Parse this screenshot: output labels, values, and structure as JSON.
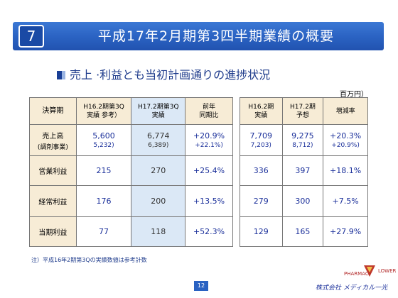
{
  "header": {
    "section_number": "7",
    "title": "平成17年2月期第3四半期業績の概要"
  },
  "subheading": "売上 ·利益とも当初計画通りの進捗状況",
  "unit": "百万円）",
  "left_table": {
    "headers": [
      {
        "line1": "決算期",
        "line2": ""
      },
      {
        "line1": "H16.2期第3Q",
        "line2": "実績 参考）"
      },
      {
        "line1": "H17.2期第3Q",
        "line2": "実績"
      },
      {
        "line1": "前年",
        "line2": "同期比"
      }
    ],
    "rows": [
      {
        "label": "売上高",
        "sublabel": "(調剤事業)",
        "c1": "5,600",
        "c1_sub": "5,232)",
        "c2": "6,774",
        "c2_sub": "6,389)",
        "c3": "+20.9%",
        "c3_sub": "+22.1%)"
      },
      {
        "label": "営業利益",
        "sublabel": "",
        "c1": "215",
        "c1_sub": "",
        "c2": "270",
        "c2_sub": "",
        "c3": "+25.4%",
        "c3_sub": ""
      },
      {
        "label": "経常利益",
        "sublabel": "",
        "c1": "176",
        "c1_sub": "",
        "c2": "200",
        "c2_sub": "",
        "c3": "+13.5%",
        "c3_sub": ""
      },
      {
        "label": "当期利益",
        "sublabel": "",
        "c1": "77",
        "c1_sub": "",
        "c2": "118",
        "c2_sub": "",
        "c3": "+52.3%",
        "c3_sub": ""
      }
    ]
  },
  "right_table": {
    "headers": [
      {
        "line1": "H16.2期",
        "line2": "実績"
      },
      {
        "line1": "H17.2期",
        "line2": "予想"
      },
      {
        "line1": "増減率",
        "line2": ""
      }
    ],
    "rows": [
      {
        "c1": "7,709",
        "c1_sub": "7,203)",
        "c2": "9,275",
        "c2_sub": "8,712)",
        "c3": "+20.3%",
        "c3_sub": "+20.9%)"
      },
      {
        "c1": "336",
        "c1_sub": "",
        "c2": "397",
        "c2_sub": "",
        "c3": "+18.1%",
        "c3_sub": ""
      },
      {
        "c1": "279",
        "c1_sub": "",
        "c2": "300",
        "c2_sub": "",
        "c3": "+7.5%",
        "c3_sub": ""
      },
      {
        "c1": "129",
        "c1_sub": "",
        "c2": "165",
        "c2_sub": "",
        "c3": "+27.9%",
        "c3_sub": ""
      }
    ]
  },
  "footnote": "注）平成16年2期第3Qの実績数値は参考計数",
  "page_number": "12",
  "logo": {
    "text_pharmacy": "PHARMACY",
    "text_lower": "LOWER",
    "company": "株式会社 メディカル一光"
  },
  "colors": {
    "header_blue": "#2a62c2",
    "table_header_bg": "#f7ecd6",
    "highlight_col_bg": "#dbe8f6",
    "value_blue": "#1a2f9a"
  }
}
